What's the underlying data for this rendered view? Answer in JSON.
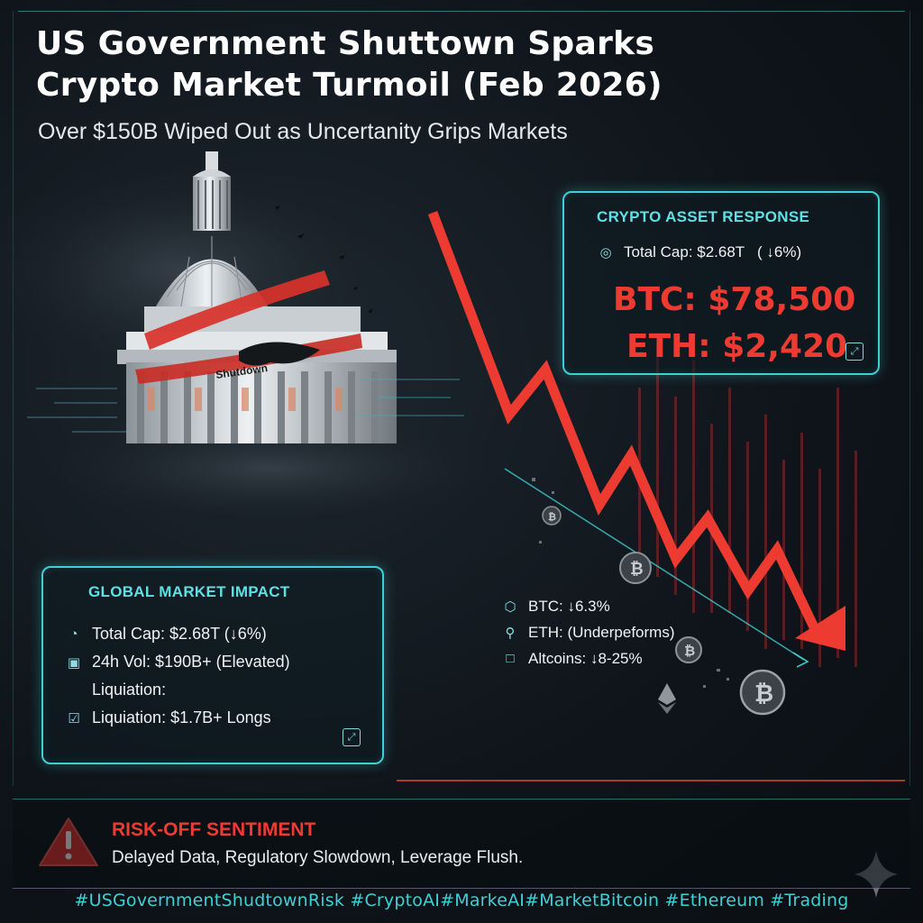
{
  "header": {
    "title_line1": "US Government Shuttown Sparks",
    "title_line2": "Crypto Market Turmoil (Feb 2026)",
    "subtitle": "Over $150B Wiped Out as Uncertanity Grips Markets"
  },
  "capitol_banner_text": "Shutdown",
  "asset_panel": {
    "title": "CRYPTO ASSET RESPONSE",
    "total_cap": "Total Cap: $2.68T   ( ↓6%)",
    "btc_price": "BTC: $78,500",
    "eth_price": "ETH: $2,420"
  },
  "global_panel": {
    "title": "GLOBAL MARKET IMPACT",
    "rows": [
      {
        "icon": "gauge-icon",
        "text": "Total Cap: $2.68T (↓6%)"
      },
      {
        "icon": "calendar-icon",
        "text": "24h Vol: $190B+ (Elevated)"
      },
      {
        "icon": "none",
        "text": "Liquiation:"
      },
      {
        "icon": "checkbox-icon",
        "text": "Liquiation: $1.7B+ Longs"
      }
    ]
  },
  "coin_impact": [
    {
      "icon": "hexagon-icon",
      "text": "BTC: ↓6.3%"
    },
    {
      "icon": "pin-icon",
      "text": "ETH: (Underpeforms)"
    },
    {
      "icon": "square-icon",
      "text": "Altcoins: ↓8-25%"
    }
  ],
  "risk": {
    "title": "RISK-OFF SENTIMENT",
    "description": "Delayed Data, Regulatory Slowdown, Leverage Flush."
  },
  "hashtags": "#USGovernmentShudtownRisk #CryptoAI#MarkeAI#MarketBitcoin #Ethereum #Trading",
  "colors": {
    "accent": "#3fd0d6",
    "alert_red": "#ee3b32",
    "background": "#0f151b"
  },
  "icons": {
    "price_chart": "down-trend-arrow",
    "capitol": "capitol-dome-illustration",
    "warning": "warning-triangle-icon",
    "sparkle": "sparkle-icon"
  }
}
